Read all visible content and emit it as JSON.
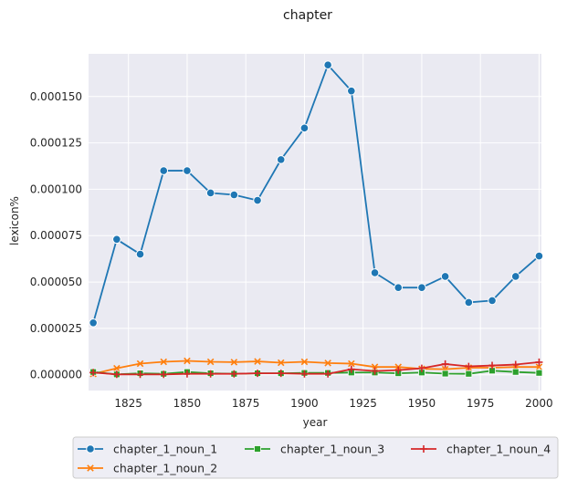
{
  "chart_data": {
    "type": "line",
    "title": "chapter",
    "xlabel": "year",
    "ylabel": "lexicon%",
    "xlim": [
      1808,
      2001
    ],
    "ylim": [
      -8.5e-06,
      0.000173
    ],
    "grid": true,
    "legend_position": "bottom",
    "x_ticks": [
      {
        "value": 1825,
        "label": "1825"
      },
      {
        "value": 1850,
        "label": "1850"
      },
      {
        "value": 1875,
        "label": "1875"
      },
      {
        "value": 1900,
        "label": "1900"
      },
      {
        "value": 1925,
        "label": "1925"
      },
      {
        "value": 1950,
        "label": "1950"
      },
      {
        "value": 1975,
        "label": "1975"
      },
      {
        "value": 2000,
        "label": "2000"
      }
    ],
    "y_ticks": [
      {
        "value": 0,
        "label": "0.000000"
      },
      {
        "value": 2.5e-05,
        "label": "0.000025"
      },
      {
        "value": 5e-05,
        "label": "0.000050"
      },
      {
        "value": 7.5e-05,
        "label": "0.000075"
      },
      {
        "value": 0.0001,
        "label": "0.000100"
      },
      {
        "value": 0.000125,
        "label": "0.000125"
      },
      {
        "value": 0.00015,
        "label": "0.000150"
      }
    ],
    "x": [
      1810,
      1820,
      1830,
      1840,
      1850,
      1860,
      1870,
      1880,
      1890,
      1900,
      1910,
      1920,
      1930,
      1940,
      1950,
      1960,
      1970,
      1980,
      1990,
      2000
    ],
    "series": [
      {
        "name": "chapter_1_noun_1",
        "color": "#1f77b4",
        "marker": "circle",
        "values": [
          2.8e-05,
          7.3e-05,
          6.5e-05,
          0.00011,
          0.00011,
          9.8e-05,
          9.7e-05,
          9.4e-05,
          0.000116,
          0.000133,
          0.000167,
          0.000153,
          5.5e-05,
          4.7e-05,
          4.7e-05,
          5.3e-05,
          3.9e-05,
          4e-05,
          5.3e-05,
          6.4e-05
        ]
      },
      {
        "name": "chapter_1_noun_2",
        "color": "#ff7f0e",
        "marker": "x",
        "values": [
          5e-07,
          3.5e-06,
          6e-06,
          7e-06,
          7.5e-06,
          7e-06,
          6.8e-06,
          7.2e-06,
          6.5e-06,
          7e-06,
          6.3e-06,
          6e-06,
          4.2e-06,
          4.2e-06,
          3.2e-06,
          3e-06,
          3.8e-06,
          3.8e-06,
          4.2e-06,
          4.2e-06
        ]
      },
      {
        "name": "chapter_1_noun_3",
        "color": "#2ca02c",
        "marker": "square",
        "values": [
          1.5e-06,
          2e-07,
          8e-07,
          5e-07,
          1.5e-06,
          8e-07,
          5e-07,
          8e-07,
          8e-07,
          1e-06,
          1e-06,
          1.2e-06,
          1.2e-06,
          8e-07,
          1.2e-06,
          6e-07,
          5e-07,
          2.2e-06,
          1.5e-06,
          1e-06
        ]
      },
      {
        "name": "chapter_1_noun_4",
        "color": "#d62728",
        "marker": "plus",
        "values": [
          1.2e-06,
          2e-07,
          2e-07,
          2e-07,
          5e-07,
          5e-07,
          5e-07,
          8e-07,
          8e-07,
          5e-07,
          5e-07,
          3e-06,
          2e-06,
          2.5e-06,
          3.5e-06,
          5.8e-06,
          4.5e-06,
          5e-06,
          5.5e-06,
          6.8e-06
        ]
      }
    ]
  }
}
